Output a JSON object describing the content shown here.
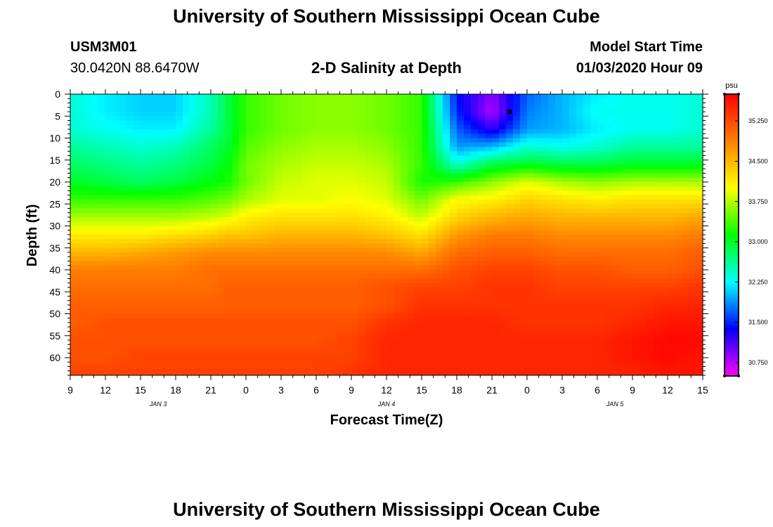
{
  "page": {
    "title": "University of Southern Mississippi Ocean Cube",
    "footer_title": "University of Southern Mississippi Ocean Cube",
    "station_id": "USM3M01",
    "station_coords": "30.0420N 88.6470W",
    "plot_title": "2-D Salinity at Depth",
    "model_start_label": "Model Start Time",
    "model_start_value": "01/03/2020 Hour 09"
  },
  "chart_data": {
    "type": "heatmap",
    "title": "2-D Salinity at Depth",
    "xlabel": "Forecast Time(Z)",
    "ylabel": "Depth (ft)",
    "x_tick_labels": [
      "9",
      "12",
      "15",
      "18",
      "21",
      "0",
      "3",
      "6",
      "9",
      "12",
      "15",
      "18",
      "21",
      "0",
      "3",
      "6",
      "9",
      "12",
      "15"
    ],
    "date_labels": [
      {
        "label": "JAN 3",
        "tick_index": 2.5
      },
      {
        "label": "JAN 4",
        "tick_index": 9
      },
      {
        "label": "JAN 5",
        "tick_index": 15.5
      }
    ],
    "x_hours_range": [
      0,
      54
    ],
    "y_ticks": [
      0,
      5,
      10,
      15,
      20,
      25,
      30,
      35,
      40,
      45,
      50,
      55,
      60
    ],
    "ylim": [
      0,
      64
    ],
    "y_inverted": true,
    "colorbar": {
      "unit": "psu",
      "min": 30.5,
      "max": 35.75,
      "tick_labels": [
        "30.750",
        "31.500",
        "32.250",
        "33.000",
        "33.750",
        "34.500",
        "35.250"
      ],
      "tick_values": [
        30.75,
        31.5,
        32.25,
        33.0,
        33.75,
        34.5,
        35.25
      ],
      "colormap": [
        "#ff00ff",
        "#8000ff",
        "#0000ff",
        "#0080ff",
        "#00ffff",
        "#00ff80",
        "#00ff00",
        "#80ff00",
        "#ffff00",
        "#ffc000",
        "#ff8000",
        "#ff4000",
        "#ff0000"
      ]
    },
    "grid": false,
    "field_samples": {
      "time_hours": [
        0,
        3,
        6,
        9,
        12,
        13.5,
        15,
        18,
        21,
        24,
        27,
        30,
        33,
        36,
        39,
        42,
        45,
        48,
        51,
        54
      ],
      "depth_ft": [
        0,
        4,
        8,
        12,
        16,
        20,
        24,
        28,
        32,
        36,
        40,
        44,
        48,
        52,
        56,
        60,
        64
      ],
      "salinity_psu_rows": [
        [
          32.4,
          32.2,
          32.1,
          32.1,
          32.5,
          32.9,
          33.3,
          33.5,
          33.6,
          33.6,
          33.5,
          33.3,
          31.4,
          30.9,
          31.7,
          32.0,
          32.2,
          32.3,
          32.3,
          32.4
        ],
        [
          32.4,
          32.2,
          32.1,
          32.1,
          32.5,
          32.9,
          33.3,
          33.5,
          33.6,
          33.6,
          33.5,
          33.3,
          31.5,
          30.75,
          31.8,
          32.0,
          32.3,
          32.3,
          32.3,
          32.4
        ],
        [
          32.4,
          32.3,
          32.2,
          32.2,
          32.6,
          32.9,
          33.3,
          33.5,
          33.6,
          33.6,
          33.5,
          33.3,
          31.7,
          31.2,
          31.9,
          32.0,
          32.2,
          32.3,
          32.3,
          32.4
        ],
        [
          32.6,
          32.5,
          32.4,
          32.5,
          32.8,
          33.0,
          33.4,
          33.6,
          33.7,
          33.7,
          33.6,
          33.3,
          31.9,
          32.0,
          32.4,
          32.3,
          32.4,
          32.6,
          32.6,
          32.6
        ],
        [
          32.8,
          32.7,
          32.6,
          32.7,
          32.9,
          33.1,
          33.5,
          33.7,
          33.8,
          33.8,
          33.7,
          33.3,
          32.4,
          32.9,
          33.0,
          32.9,
          32.9,
          33.0,
          33.0,
          33.0
        ],
        [
          33.0,
          32.9,
          32.8,
          32.9,
          33.1,
          33.2,
          33.5,
          33.8,
          33.9,
          33.9,
          33.8,
          33.2,
          33.3,
          33.6,
          33.9,
          33.7,
          33.6,
          33.7,
          33.7,
          33.7
        ],
        [
          33.3,
          33.3,
          33.3,
          33.3,
          33.4,
          33.5,
          33.7,
          33.9,
          33.9,
          34.0,
          33.9,
          33.5,
          34.0,
          34.1,
          34.3,
          34.2,
          34.1,
          34.2,
          34.2,
          34.2
        ],
        [
          33.7,
          33.7,
          33.7,
          33.7,
          33.8,
          33.9,
          34.1,
          34.2,
          34.2,
          34.2,
          34.1,
          33.8,
          34.3,
          34.5,
          34.6,
          34.5,
          34.5,
          34.5,
          34.5,
          34.6
        ],
        [
          34.1,
          34.1,
          34.1,
          34.2,
          34.3,
          34.4,
          34.4,
          34.5,
          34.5,
          34.5,
          34.4,
          34.2,
          34.7,
          34.9,
          34.9,
          34.8,
          34.8,
          34.8,
          34.8,
          34.9
        ],
        [
          34.5,
          34.5,
          34.6,
          34.7,
          34.8,
          34.8,
          34.8,
          34.8,
          34.8,
          34.8,
          34.8,
          34.6,
          35.0,
          35.1,
          35.1,
          35.0,
          35.0,
          35.0,
          35.0,
          35.1
        ],
        [
          34.9,
          34.9,
          34.9,
          34.9,
          35.0,
          35.0,
          35.0,
          35.0,
          35.0,
          35.0,
          35.0,
          35.0,
          35.2,
          35.3,
          35.3,
          35.2,
          35.2,
          35.1,
          35.1,
          35.2
        ],
        [
          35.0,
          35.0,
          35.0,
          35.0,
          35.0,
          35.1,
          35.1,
          35.1,
          35.1,
          35.1,
          35.2,
          35.3,
          35.3,
          35.4,
          35.4,
          35.3,
          35.3,
          35.3,
          35.3,
          35.4
        ],
        [
          35.1,
          35.1,
          35.1,
          35.1,
          35.1,
          35.1,
          35.1,
          35.1,
          35.1,
          35.1,
          35.2,
          35.4,
          35.4,
          35.4,
          35.4,
          35.4,
          35.4,
          35.4,
          35.5,
          35.5
        ],
        [
          35.1,
          35.2,
          35.2,
          35.2,
          35.2,
          35.2,
          35.2,
          35.2,
          35.2,
          35.2,
          35.4,
          35.5,
          35.5,
          35.5,
          35.4,
          35.4,
          35.4,
          35.5,
          35.6,
          35.6
        ],
        [
          35.2,
          35.2,
          35.2,
          35.2,
          35.2,
          35.2,
          35.2,
          35.2,
          35.2,
          35.3,
          35.5,
          35.5,
          35.5,
          35.5,
          35.5,
          35.5,
          35.5,
          35.6,
          35.7,
          35.7
        ],
        [
          35.2,
          35.2,
          35.3,
          35.3,
          35.3,
          35.3,
          35.3,
          35.3,
          35.3,
          35.3,
          35.5,
          35.5,
          35.5,
          35.5,
          35.5,
          35.5,
          35.5,
          35.6,
          35.7,
          35.6
        ],
        [
          35.3,
          35.3,
          35.3,
          35.3,
          35.3,
          35.3,
          35.3,
          35.3,
          35.3,
          35.4,
          35.5,
          35.5,
          35.5,
          35.5,
          35.5,
          35.5,
          35.5,
          35.5,
          35.6,
          35.6
        ]
      ]
    },
    "marker": {
      "time_hours": 37.5,
      "depth_ft": 4
    }
  }
}
